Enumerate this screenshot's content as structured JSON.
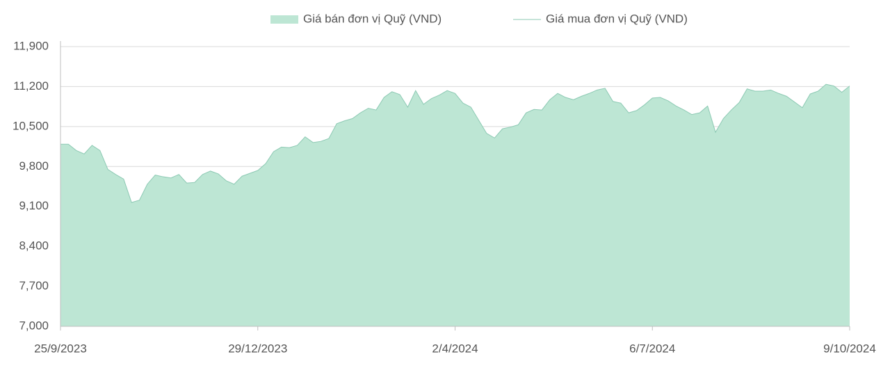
{
  "chart_data": {
    "type": "area",
    "categories": [
      "25/9/2023",
      null,
      null,
      null,
      null,
      null,
      null,
      null,
      null,
      null,
      null,
      null,
      null,
      null,
      null,
      null,
      null,
      null,
      null,
      null,
      null,
      null,
      null,
      null,
      null,
      "29/12/2023",
      null,
      null,
      null,
      null,
      null,
      null,
      null,
      null,
      null,
      null,
      null,
      null,
      null,
      null,
      null,
      null,
      null,
      null,
      null,
      null,
      null,
      null,
      null,
      null,
      "2/4/2024",
      null,
      null,
      null,
      null,
      null,
      null,
      null,
      null,
      null,
      null,
      null,
      null,
      null,
      null,
      null,
      null,
      null,
      null,
      null,
      null,
      null,
      null,
      null,
      null,
      "6/7/2024",
      null,
      null,
      null,
      null,
      null,
      null,
      null,
      null,
      null,
      null,
      null,
      null,
      null,
      null,
      null,
      null,
      null,
      null,
      null,
      null,
      null,
      null,
      null,
      null,
      "9/10/2024"
    ],
    "series": [
      {
        "name": "Giá bán đơn vị Quỹ (VND)",
        "type": "area",
        "color": "#bde6d4",
        "values": [
          10190,
          10190,
          10080,
          10020,
          10170,
          10080,
          9750,
          9660,
          9580,
          9170,
          9210,
          9490,
          9650,
          9620,
          9600,
          9660,
          9510,
          9520,
          9660,
          9720,
          9670,
          9550,
          9490,
          9630,
          9680,
          9730,
          9850,
          10060,
          10140,
          10130,
          10170,
          10320,
          10220,
          10240,
          10290,
          10550,
          10600,
          10640,
          10740,
          10820,
          10790,
          11010,
          11110,
          11060,
          10840,
          11130,
          10890,
          10990,
          11050,
          11130,
          11080,
          10910,
          10840,
          10610,
          10380,
          10300,
          10460,
          10490,
          10530,
          10740,
          10800,
          10790,
          10970,
          11080,
          11010,
          10970,
          11030,
          11080,
          11140,
          11170,
          10940,
          10910,
          10740,
          10780,
          10880,
          11000,
          11010,
          10950,
          10860,
          10790,
          10710,
          10740,
          10860,
          10400,
          10640,
          10790,
          10920,
          11160,
          11120,
          11120,
          11140,
          11080,
          11030,
          10930,
          10830,
          11070,
          11120,
          11240,
          11210,
          11100,
          11210
        ]
      },
      {
        "name": "Giá mua đơn vị Quỹ (VND)",
        "type": "line",
        "color": "#8cc9b3",
        "values": [
          10190,
          10190,
          10080,
          10020,
          10170,
          10080,
          9750,
          9660,
          9580,
          9170,
          9210,
          9490,
          9650,
          9620,
          9600,
          9660,
          9510,
          9520,
          9660,
          9720,
          9670,
          9550,
          9490,
          9630,
          9680,
          9730,
          9850,
          10060,
          10140,
          10130,
          10170,
          10320,
          10220,
          10240,
          10290,
          10550,
          10600,
          10640,
          10740,
          10820,
          10790,
          11010,
          11110,
          11060,
          10840,
          11130,
          10890,
          10990,
          11050,
          11130,
          11080,
          10910,
          10840,
          10610,
          10380,
          10300,
          10460,
          10490,
          10530,
          10740,
          10800,
          10790,
          10970,
          11080,
          11010,
          10970,
          11030,
          11080,
          11140,
          11170,
          10940,
          10910,
          10740,
          10780,
          10880,
          11000,
          11010,
          10950,
          10860,
          10790,
          10710,
          10740,
          10860,
          10400,
          10640,
          10790,
          10920,
          11160,
          11120,
          11120,
          11140,
          11080,
          11030,
          10930,
          10830,
          11070,
          11120,
          11240,
          11210,
          11100,
          11210
        ]
      }
    ],
    "ylim": [
      7000,
      11900
    ],
    "yticks": [
      {
        "value": 7000,
        "label": "7,000"
      },
      {
        "value": 7700,
        "label": "7,700"
      },
      {
        "value": 8400,
        "label": "8,400"
      },
      {
        "value": 9100,
        "label": "9,100"
      },
      {
        "value": 9800,
        "label": "9,800"
      },
      {
        "value": 10500,
        "label": "10,500"
      },
      {
        "value": 11200,
        "label": "11,200"
      },
      {
        "value": 11900,
        "label": "11,900"
      }
    ],
    "grid": true,
    "legend": "top"
  }
}
